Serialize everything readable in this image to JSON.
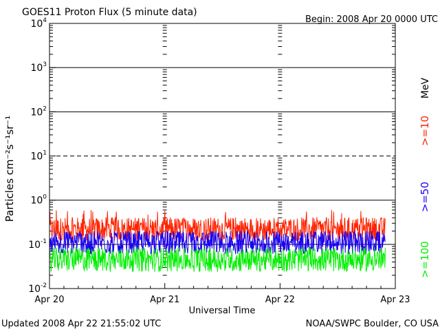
{
  "header": {
    "title": "GOES11 Proton Flux (5 minute data)",
    "begin": "Begin: 2008 Apr 20 0000 UTC"
  },
  "footer": {
    "updated": "Updated 2008 Apr 22 21:55:02 UTC",
    "credit": "NOAA/SWPC Boulder, CO USA"
  },
  "colors": {
    "ge10": "#ff2200",
    "ge50": "#1a00ee",
    "ge100": "#00ee00",
    "axis": "#000000"
  },
  "chart_data": {
    "type": "line",
    "title": "GOES11 Proton Flux (5 minute data)",
    "subtitle": "Begin: 2008 Apr 20 0000 UTC",
    "xlabel": "Universal Time",
    "ylabel": "Particles cm⁻²s⁻¹sr⁻¹",
    "y_scale": "log",
    "ylim": [
      0.01,
      10000
    ],
    "xlim": [
      "2008-04-20 00:00",
      "2008-04-23 00:00"
    ],
    "x_tick_labels": [
      "Apr 20",
      "Apr 21",
      "Apr 22",
      "Apr 23"
    ],
    "y_tick_labels": [
      {
        "base": "10",
        "exp": "-2"
      },
      {
        "base": "10",
        "exp": "-1"
      },
      {
        "base": "10",
        "exp": "0"
      },
      {
        "base": "10",
        "exp": "1"
      },
      {
        "base": "10",
        "exp": "2"
      },
      {
        "base": "10",
        "exp": "3"
      },
      {
        "base": "10",
        "exp": "4"
      }
    ],
    "horizontal_lines": [
      {
        "y": 0.1,
        "style": "solid"
      },
      {
        "y": 1,
        "style": "solid"
      },
      {
        "y": 10,
        "style": "dashed"
      },
      {
        "y": 100,
        "style": "solid"
      },
      {
        "y": 1000,
        "style": "solid"
      }
    ],
    "legend": {
      "placement": "right",
      "unit": "MeV",
      "entries": [
        {
          "label": ">=10",
          "color": "#ff2200"
        },
        {
          "label": ">=50",
          "color": "#1a00ee"
        },
        {
          "label": ">=100",
          "color": "#00ee00"
        }
      ]
    },
    "data_end": "2008-04-22 21:55",
    "series": [
      {
        "name": ">=10",
        "color": "#ff2200",
        "typical": 0.22,
        "range": [
          0.12,
          0.6
        ]
      },
      {
        "name": ">=50",
        "color": "#1a00ee",
        "typical": 0.11,
        "range": [
          0.06,
          0.2
        ]
      },
      {
        "name": ">=100",
        "color": "#00ee00",
        "typical": 0.045,
        "range": [
          0.022,
          0.09
        ]
      }
    ]
  }
}
